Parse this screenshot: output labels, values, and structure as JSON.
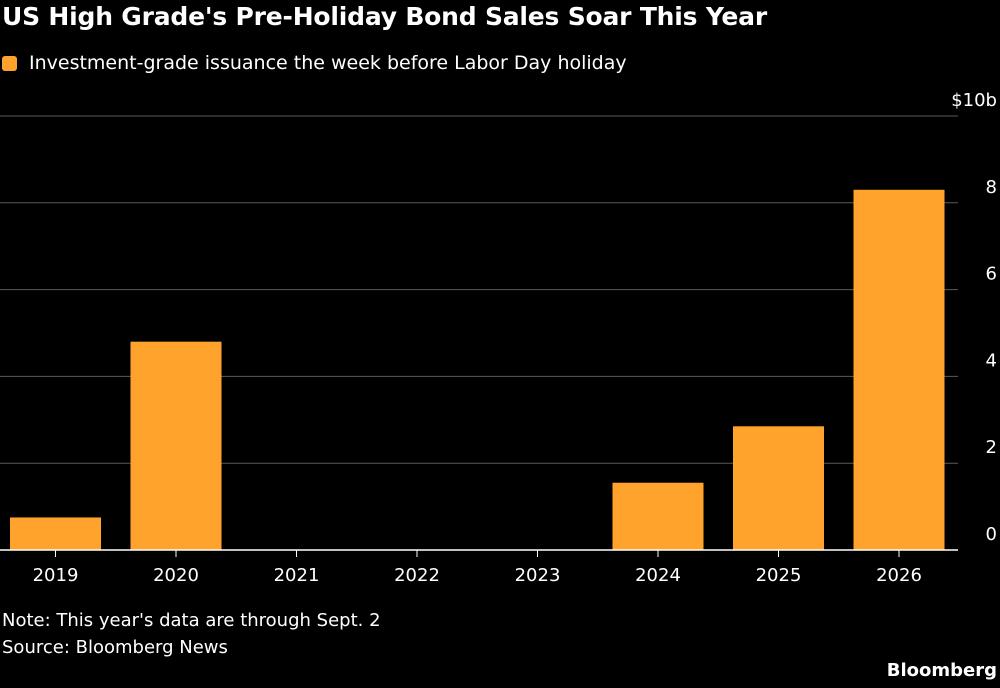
{
  "title": "US High Grade's Pre-Holiday Bond Sales Soar This Year",
  "note": "Note: This year's data are through Sept. 2",
  "source": "Source: Bloomberg News",
  "brand": "Bloomberg",
  "colors": {
    "background": "#000000",
    "bar": "#FFA32C",
    "grid": "#5a5a5a",
    "text": "#ffffff"
  },
  "chart_data": {
    "type": "bar",
    "title": "US High Grade's Pre-Holiday Bond Sales Soar This Year",
    "xlabel": "",
    "ylabel": "",
    "categories": [
      "2019",
      "2020",
      "2021",
      "2022",
      "2023",
      "2024",
      "2025",
      "2026"
    ],
    "series": [
      {
        "name": "Investment-grade issuance the week before Labor Day holiday",
        "values": [
          0.75,
          4.8,
          0,
          0,
          0,
          1.55,
          2.85,
          8.3
        ]
      }
    ],
    "ylim": [
      0,
      10
    ],
    "yticks": [
      {
        "value": 0,
        "label": "0"
      },
      {
        "value": 2,
        "label": "2"
      },
      {
        "value": 4,
        "label": "4"
      },
      {
        "value": 6,
        "label": "6"
      },
      {
        "value": 8,
        "label": "8"
      },
      {
        "value": 10,
        "label": "$10b"
      }
    ],
    "grid": true,
    "y_axis_side": "right",
    "legend_position": "top-left"
  }
}
